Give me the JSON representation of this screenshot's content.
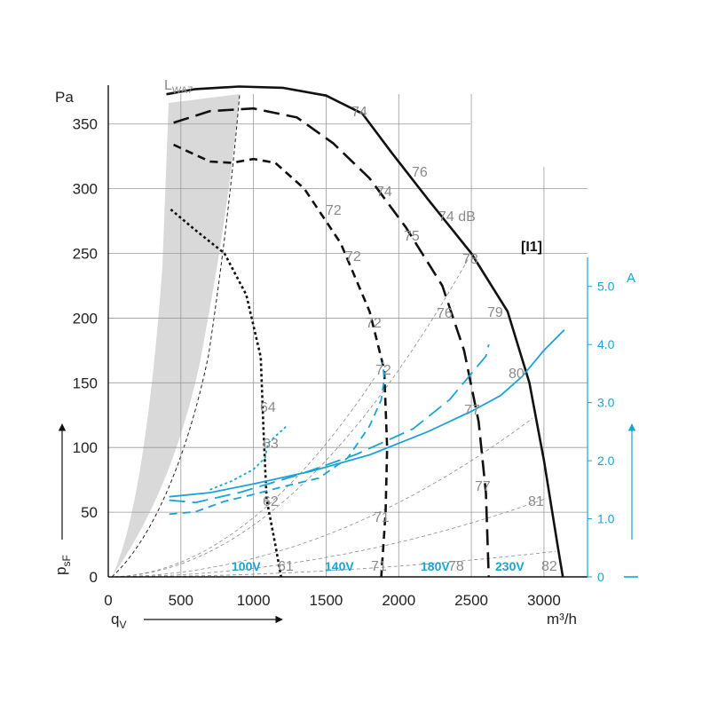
{
  "chart_data": {
    "type": "line",
    "title": "",
    "code_label": "[I1]",
    "y_unit": "Pa",
    "x_unit": "m³/h",
    "ylabel_main": "p",
    "ylabel_sub": "sF",
    "xlabel_main": "q",
    "xlabel_sub": "V",
    "lwa_main": "L",
    "lwa_sub": "WA7",
    "right_unit": "A",
    "x_ticks": [
      "0",
      "500",
      "1000",
      "1500",
      "2000",
      "2500",
      "3000"
    ],
    "y_ticks": [
      "0",
      "50",
      "100",
      "150",
      "200",
      "250",
      "300",
      "350"
    ],
    "right_ticks": [
      "0",
      "1.0",
      "2.0",
      "3.0",
      "4.0",
      "5.0"
    ],
    "xlim": [
      0,
      3300
    ],
    "ylim": [
      0,
      380
    ],
    "right_lim": [
      0,
      5.5
    ],
    "pressure_curves": [
      {
        "name": "230V",
        "style": "solid",
        "points": [
          [
            400,
            373
          ],
          [
            600,
            377
          ],
          [
            900,
            379
          ],
          [
            1200,
            378
          ],
          [
            1500,
            372
          ],
          [
            1750,
            358
          ],
          [
            1950,
            328
          ],
          [
            2200,
            292
          ],
          [
            2500,
            250
          ],
          [
            2750,
            205
          ],
          [
            2900,
            150
          ],
          [
            3000,
            90
          ],
          [
            3100,
            20
          ],
          [
            3130,
            0
          ]
        ]
      },
      {
        "name": "180V",
        "style": "dash-long",
        "points": [
          [
            450,
            351
          ],
          [
            700,
            360
          ],
          [
            1000,
            362
          ],
          [
            1300,
            355
          ],
          [
            1550,
            335
          ],
          [
            1800,
            308
          ],
          [
            2050,
            270
          ],
          [
            2300,
            225
          ],
          [
            2450,
            175
          ],
          [
            2550,
            120
          ],
          [
            2600,
            65
          ],
          [
            2620,
            0
          ]
        ]
      },
      {
        "name": "140V",
        "style": "dash-medium",
        "points": [
          [
            450,
            334
          ],
          [
            700,
            321
          ],
          [
            850,
            320
          ],
          [
            1000,
            323
          ],
          [
            1150,
            320
          ],
          [
            1350,
            300
          ],
          [
            1600,
            258
          ],
          [
            1800,
            205
          ],
          [
            1900,
            160
          ],
          [
            1920,
            100
          ],
          [
            1910,
            50
          ],
          [
            1880,
            0
          ]
        ]
      },
      {
        "name": "100V",
        "style": "dotted",
        "points": [
          [
            430,
            284
          ],
          [
            600,
            268
          ],
          [
            800,
            250
          ],
          [
            950,
            218
          ],
          [
            1050,
            170
          ],
          [
            1070,
            110
          ],
          [
            1090,
            60
          ],
          [
            1150,
            25
          ],
          [
            1190,
            0
          ]
        ]
      }
    ],
    "current_curves": [
      {
        "name": "230V",
        "style": "solid",
        "points": [
          [
            420,
            1.38
          ],
          [
            700,
            1.45
          ],
          [
            1000,
            1.6
          ],
          [
            1400,
            1.82
          ],
          [
            1800,
            2.1
          ],
          [
            2200,
            2.5
          ],
          [
            2500,
            2.85
          ],
          [
            2700,
            3.12
          ],
          [
            2850,
            3.45
          ],
          [
            3000,
            3.9
          ],
          [
            3140,
            4.25
          ]
        ]
      },
      {
        "name": "180V",
        "style": "dash-long",
        "points": [
          [
            420,
            1.32
          ],
          [
            600,
            1.28
          ],
          [
            900,
            1.45
          ],
          [
            1300,
            1.75
          ],
          [
            1700,
            2.1
          ],
          [
            2100,
            2.55
          ],
          [
            2350,
            3.05
          ],
          [
            2500,
            3.5
          ],
          [
            2600,
            3.8
          ],
          [
            2620,
            4.0
          ]
        ]
      },
      {
        "name": "140V",
        "style": "dash-medium",
        "points": [
          [
            420,
            1.08
          ],
          [
            600,
            1.12
          ],
          [
            800,
            1.3
          ],
          [
            1000,
            1.42
          ],
          [
            1200,
            1.55
          ],
          [
            1450,
            1.7
          ],
          [
            1650,
            2.05
          ],
          [
            1800,
            2.6
          ],
          [
            1880,
            3.05
          ],
          [
            1900,
            3.4
          ],
          [
            1890,
            3.7
          ]
        ]
      },
      {
        "name": "100V",
        "style": "dotted",
        "points": [
          [
            700,
            1.5
          ],
          [
            850,
            1.65
          ],
          [
            1000,
            1.85
          ],
          [
            1080,
            2.05
          ],
          [
            1100,
            2.3
          ],
          [
            1150,
            2.42
          ],
          [
            1230,
            2.6
          ]
        ]
      }
    ],
    "sound_labels": [
      "74",
      "76",
      "74 dB",
      "74",
      "75",
      "72",
      "72",
      "72",
      "72",
      "78",
      "76",
      "79",
      "80",
      "77",
      "77",
      "81",
      "82",
      "78",
      "71",
      "71",
      "61",
      "62",
      "63",
      "64"
    ],
    "voltage_labels": [
      "100V",
      "140V",
      "180V",
      "230V"
    ]
  }
}
